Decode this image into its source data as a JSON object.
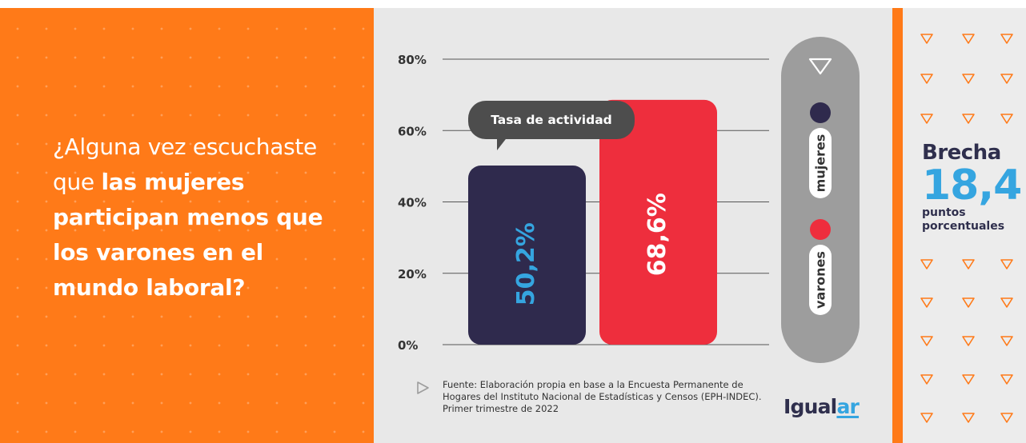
{
  "question": {
    "normal": "¿Alguna vez escuchaste que ",
    "bold": "las mujeres participan menos que los varones en el mundo laboral?"
  },
  "chart_data": {
    "type": "bar",
    "categories": [
      "mujeres",
      "varones"
    ],
    "values": [
      50.2,
      68.6
    ],
    "value_labels": [
      "50,2%",
      "68,6%"
    ],
    "colors": [
      "#2f2a4d",
      "#ee2e3d"
    ],
    "label_colors": [
      "#35a5e0",
      "#ffffff"
    ],
    "ylim": [
      0,
      80
    ],
    "yticks": [
      0,
      20,
      40,
      60,
      80
    ],
    "ytick_labels": [
      "0%",
      "20%",
      "40%",
      "60%",
      "80%"
    ],
    "grid": true,
    "annotation": "Tasa de actividad",
    "legend": {
      "placement": "right",
      "items": [
        {
          "label": "mujeres",
          "color": "#2f2a4d"
        },
        {
          "label": "varones",
          "color": "#ee2e3d"
        }
      ]
    }
  },
  "source": "Fuente: Elaboración propia en base a la Encuesta Permanente de Hogares del Instituto Nacional de Estadísticas y Censos (EPH-INDEC). Primer trimestre de 2022",
  "logo": {
    "part1": "Igual",
    "part2": "ar"
  },
  "gap": {
    "title": "Brecha",
    "value": "18,4",
    "unit": "puntos porcentuales"
  },
  "colors": {
    "brand_orange": "#ff7a18",
    "navy": "#2f2a4d",
    "red": "#ee2e3d",
    "blue": "#35a5e0"
  },
  "icons": [
    "triangle-down-icon",
    "play-triangle-icon"
  ]
}
